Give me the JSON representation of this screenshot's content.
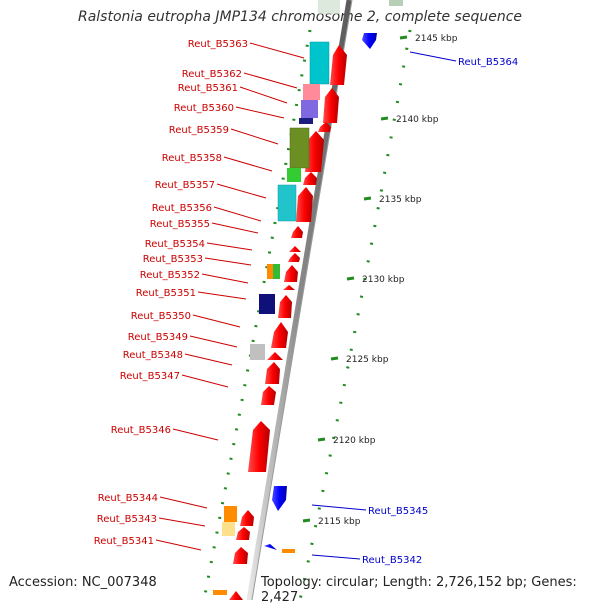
{
  "title": "Ralstonia eutropha JMP134 chromosome 2, complete sequence",
  "accession": "Accession: NC_007348",
  "topology": "Topology: circular; Length: 2,726,152 bp; Genes: 2,427",
  "colors": {
    "forward": "#ff0000",
    "reverse": "#0000ff",
    "tick": "#228b22",
    "backbone": "#9a9a9a"
  },
  "left_labels": [
    {
      "id": "Reut_B5363"
    },
    {
      "id": "Reut_B5362"
    },
    {
      "id": "Reut_B5361"
    },
    {
      "id": "Reut_B5360"
    },
    {
      "id": "Reut_B5359"
    },
    {
      "id": "Reut_B5358"
    },
    {
      "id": "Reut_B5357"
    },
    {
      "id": "Reut_B5356"
    },
    {
      "id": "Reut_B5355"
    },
    {
      "id": "Reut_B5354"
    },
    {
      "id": "Reut_B5353"
    },
    {
      "id": "Reut_B5352"
    },
    {
      "id": "Reut_B5351"
    },
    {
      "id": "Reut_B5350"
    },
    {
      "id": "Reut_B5349"
    },
    {
      "id": "Reut_B5348"
    },
    {
      "id": "Reut_B5347"
    },
    {
      "id": "Reut_B5346"
    },
    {
      "id": "Reut_B5344"
    },
    {
      "id": "Reut_B5343"
    },
    {
      "id": "Reut_B5341"
    }
  ],
  "right_labels": [
    {
      "id": "Reut_B5364"
    },
    {
      "id": "Reut_B5345"
    },
    {
      "id": "Reut_B5342"
    }
  ],
  "scale_ticks": [
    "2145 kbp",
    "2140 kbp",
    "2135 kbp",
    "2130 kbp",
    "2125 kbp",
    "2120 kbp",
    "2115 kbp"
  ]
}
